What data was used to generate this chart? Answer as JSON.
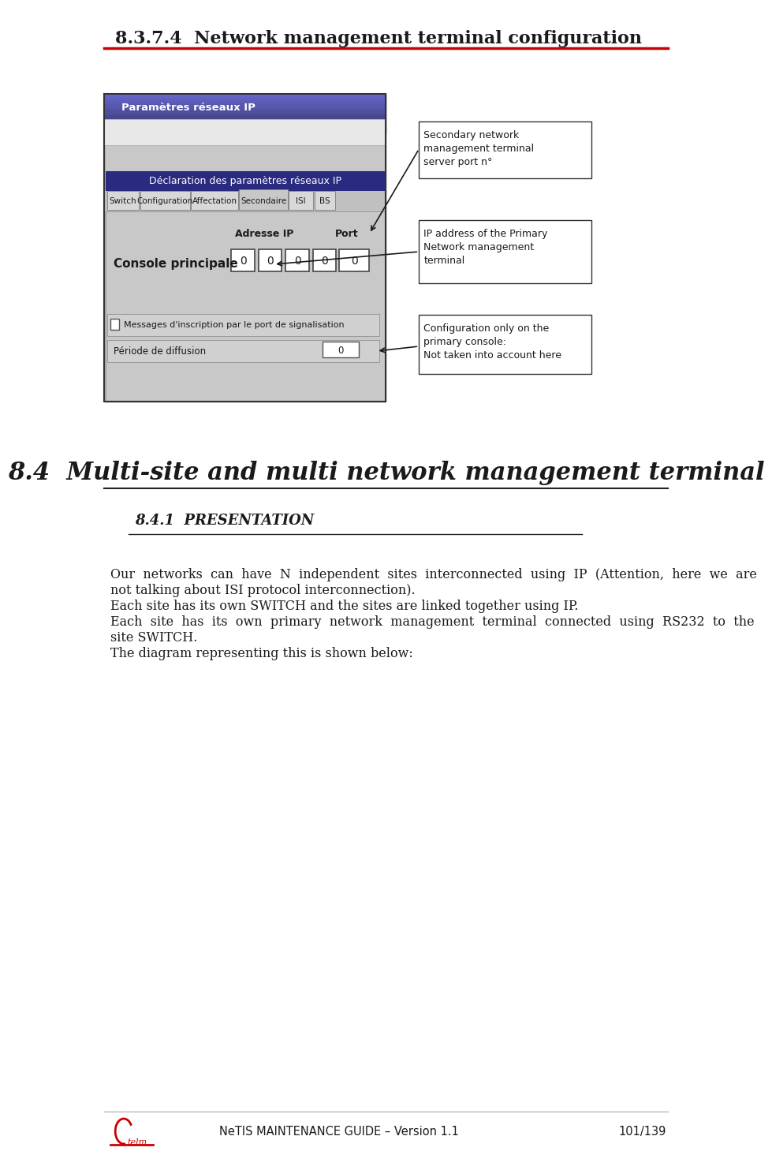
{
  "page_title": "8.3.7.4  Network management terminal configuration",
  "title_fontsize": 16,
  "title_color": "#1a1a1a",
  "title_underline_color": "#cc0000",
  "section_title": "8.4  Multi-site and multi network management terminal",
  "section_title_fontsize": 22,
  "subsection_title": "8.4.1  PRESENTATION",
  "subsection_title_fontsize": 13,
  "body_text_lines": [
    "Our  networks  can  have  N  independent  sites  interconnected  using  IP  (Attention,  here  we  are",
    "not talking about ISI protocol interconnection).",
    "Each site has its own SWITCH and the sites are linked together using IP.",
    "Each  site  has  its  own  primary  network  management  terminal  connected  using  RS232  to  the",
    "site SWITCH.",
    "The diagram representing this is shown below:"
  ],
  "body_fontsize": 11.5,
  "footer_text": "NeTIS MAINTENANCE GUIDE – Version 1.1",
  "footer_page": "101/139",
  "bg_color": "#ffffff",
  "annotation_box1": "Secondary network\nmanagement terminal\nserver port n°",
  "annotation_box2": "IP address of the Primary\nNetwork management\nterminal",
  "annotation_box3": "Configuration only on the\nprimary console:\nNot taken into account here",
  "dialog_title": "Paramètres réseaux IP",
  "dialog_subtitle": "Déclaration des paramètres réseaux IP",
  "tab_labels": [
    "Switch",
    "Configuration",
    "Affectation",
    "Secondaire",
    "ISI",
    "BS"
  ],
  "field_label": "Console principale",
  "adresse_label": "Adresse IP",
  "port_label": "Port",
  "messages_label": "Messages d'inscription par le port de signalisation",
  "periode_label": "Période de diffusion"
}
